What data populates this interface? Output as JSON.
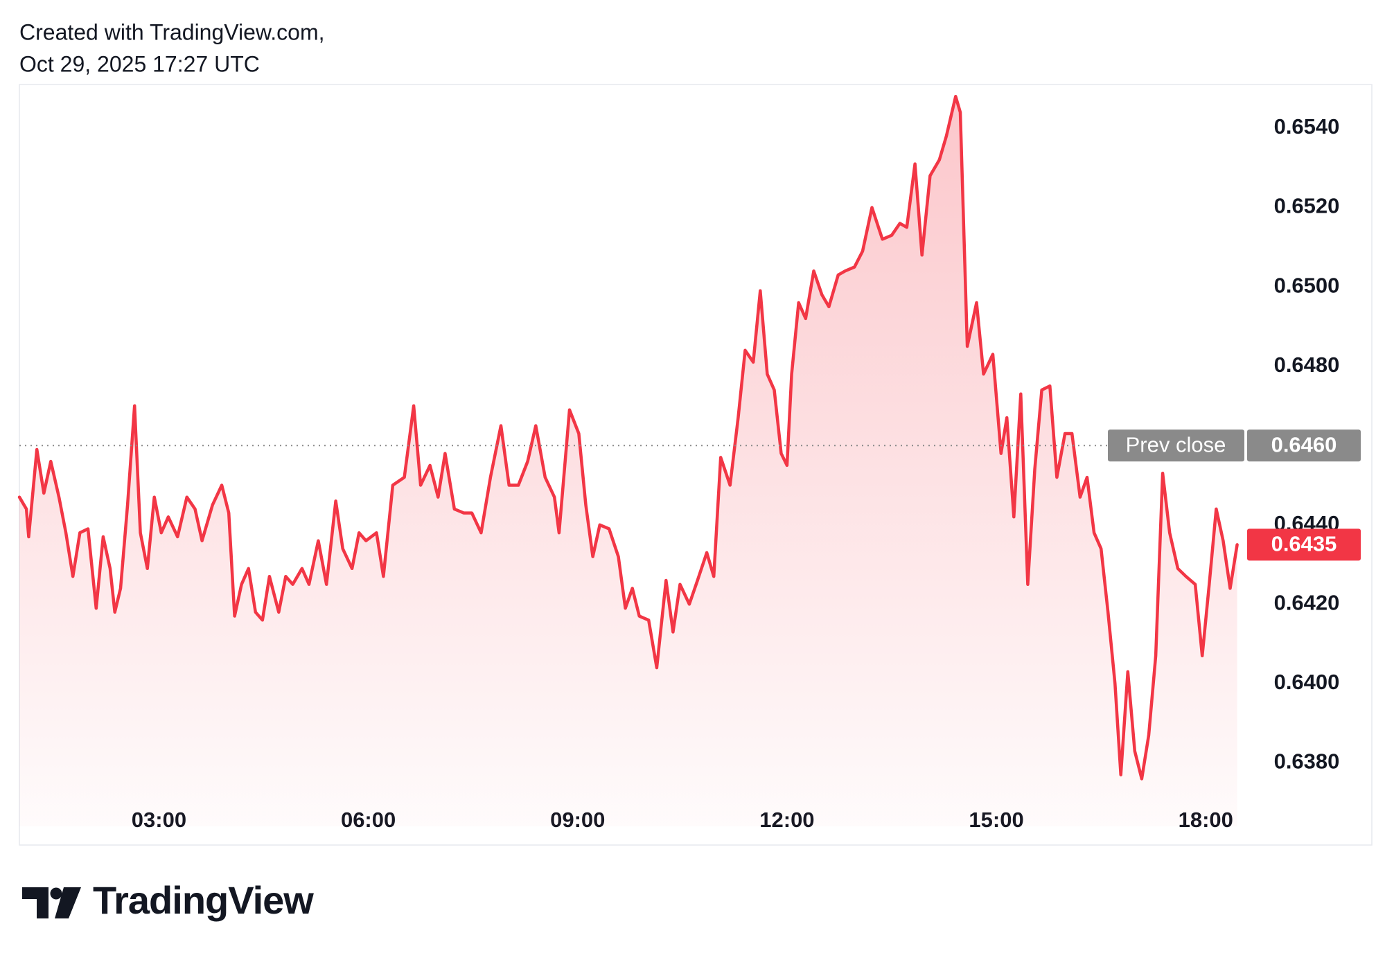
{
  "chart_data": {
    "type": "area",
    "title": "Created with TradingView.com,",
    "subtitle": "Oct 29, 2025 17:27 UTC",
    "logo": "TradingView",
    "color": "#f23645",
    "x": [
      "01:00",
      "01:06",
      "01:08",
      "01:15",
      "01:21",
      "01:27",
      "01:34",
      "01:40",
      "01:46",
      "01:52",
      "01:59",
      "02:06",
      "02:12",
      "02:18",
      "02:22",
      "02:27",
      "02:33",
      "02:39",
      "02:44",
      "02:50",
      "02:56",
      "03:02",
      "03:08",
      "03:16",
      "03:24",
      "03:31",
      "03:37",
      "03:46",
      "03:54",
      "04:00",
      "04:05",
      "04:11",
      "04:17",
      "04:23",
      "04:29",
      "04:35",
      "04:43",
      "04:49",
      "04:55",
      "05:03",
      "05:09",
      "05:17",
      "05:24",
      "05:32",
      "05:38",
      "05:46",
      "05:52",
      "05:58",
      "06:07",
      "06:13",
      "06:21",
      "06:31",
      "06:39",
      "06:45",
      "06:53",
      "07:00",
      "07:06",
      "07:14",
      "07:22",
      "07:29",
      "07:37",
      "07:45",
      "07:54",
      "08:01",
      "08:09",
      "08:17",
      "08:24",
      "08:32",
      "08:40",
      "08:44",
      "08:53",
      "09:01",
      "09:07",
      "09:13",
      "09:19",
      "09:27",
      "09:35",
      "09:41",
      "09:47",
      "09:53",
      "10:01",
      "10:08",
      "10:16",
      "10:22",
      "10:28",
      "10:36",
      "10:43",
      "10:51",
      "10:57",
      "11:03",
      "11:11",
      "11:18",
      "11:24",
      "11:31",
      "11:37",
      "11:43",
      "11:49",
      "11:55",
      "12:00",
      "12:04",
      "12:10",
      "12:16",
      "12:23",
      "12:30",
      "12:36",
      "12:44",
      "12:50",
      "12:58",
      "13:05",
      "13:13",
      "13:22",
      "13:30",
      "13:37",
      "13:43",
      "13:50",
      "13:56",
      "14:03",
      "14:11",
      "14:17",
      "14:25",
      "14:29",
      "14:35",
      "14:43",
      "14:49",
      "14:57",
      "15:04",
      "15:09",
      "15:15",
      "15:21",
      "15:27",
      "15:33",
      "15:39",
      "15:46",
      "15:52",
      "15:59",
      "16:05",
      "16:12",
      "16:18",
      "16:24",
      "16:30",
      "16:36",
      "16:42",
      "16:47",
      "16:53",
      "16:59",
      "17:05",
      "17:11",
      "17:17",
      "17:23",
      "17:29",
      "17:36",
      "17:43",
      "17:51",
      "17:57",
      "18:03",
      "18:09",
      "18:15",
      "18:21",
      "18:27"
    ],
    "values": [
      0.6447,
      0.6444,
      0.6437,
      0.6459,
      0.6448,
      0.6456,
      0.6447,
      0.6438,
      0.6427,
      0.6438,
      0.6439,
      0.6419,
      0.6437,
      0.6429,
      0.6418,
      0.6424,
      0.6445,
      0.647,
      0.6438,
      0.6429,
      0.6447,
      0.6438,
      0.6442,
      0.6437,
      0.6447,
      0.6444,
      0.6436,
      0.6445,
      0.645,
      0.6443,
      0.6417,
      0.6425,
      0.6429,
      0.6418,
      0.6416,
      0.6427,
      0.6418,
      0.6427,
      0.6425,
      0.6429,
      0.6425,
      0.6436,
      0.6425,
      0.6446,
      0.6434,
      0.6429,
      0.6438,
      0.6436,
      0.6438,
      0.6427,
      0.645,
      0.6452,
      0.647,
      0.645,
      0.6455,
      0.6447,
      0.6458,
      0.6444,
      0.6443,
      0.6443,
      0.6438,
      0.6452,
      0.6465,
      0.645,
      0.645,
      0.6456,
      0.6465,
      0.6452,
      0.6447,
      0.6438,
      0.6469,
      0.6463,
      0.6445,
      0.6432,
      0.644,
      0.6439,
      0.6432,
      0.6419,
      0.6424,
      0.6417,
      0.6416,
      0.6404,
      0.6426,
      0.6413,
      0.6425,
      0.642,
      0.6426,
      0.6433,
      0.6427,
      0.6457,
      0.645,
      0.6467,
      0.6484,
      0.6481,
      0.6499,
      0.6478,
      0.6474,
      0.6458,
      0.6455,
      0.6478,
      0.6496,
      0.6492,
      0.6504,
      0.6498,
      0.6495,
      0.6503,
      0.6504,
      0.6505,
      0.6509,
      0.652,
      0.6512,
      0.6513,
      0.6516,
      0.6515,
      0.6531,
      0.6508,
      0.6528,
      0.6532,
      0.6538,
      0.6548,
      0.6544,
      0.6485,
      0.6496,
      0.6478,
      0.6483,
      0.6458,
      0.6467,
      0.6442,
      0.6473,
      0.6425,
      0.6454,
      0.6474,
      0.6475,
      0.6452,
      0.6463,
      0.6463,
      0.6447,
      0.6452,
      0.6438,
      0.6434,
      0.6418,
      0.64,
      0.6377,
      0.6403,
      0.6383,
      0.6376,
      0.6387,
      0.6407,
      0.6453,
      0.6438,
      0.6429,
      0.6427,
      0.6425,
      0.6407,
      0.6425,
      0.6444,
      0.6436,
      0.6424,
      0.6435
    ],
    "xlim": [
      "01:00",
      "18:35"
    ],
    "xticks": [
      "03:00",
      "06:00",
      "09:00",
      "12:00",
      "15:00",
      "18:00"
    ],
    "ylim": [
      0.6371,
      0.6551
    ],
    "yticks": [
      {
        "value": 0.638,
        "label": "0.6380"
      },
      {
        "value": 0.64,
        "label": "0.6400"
      },
      {
        "value": 0.642,
        "label": "0.6420"
      },
      {
        "value": 0.644,
        "label": "0.6440"
      },
      {
        "value": 0.646,
        "label": "0.6460"
      },
      {
        "value": 0.648,
        "label": "0.6480"
      },
      {
        "value": 0.65,
        "label": "0.6500"
      },
      {
        "value": 0.652,
        "label": "0.6520"
      },
      {
        "value": 0.654,
        "label": "0.6540"
      }
    ],
    "prev_close": {
      "label": "Prev close",
      "value": 0.646,
      "value_label": "0.6460",
      "color": "#8a8a8a"
    },
    "last_price": {
      "value": 0.6435,
      "value_label": "0.6435"
    }
  }
}
